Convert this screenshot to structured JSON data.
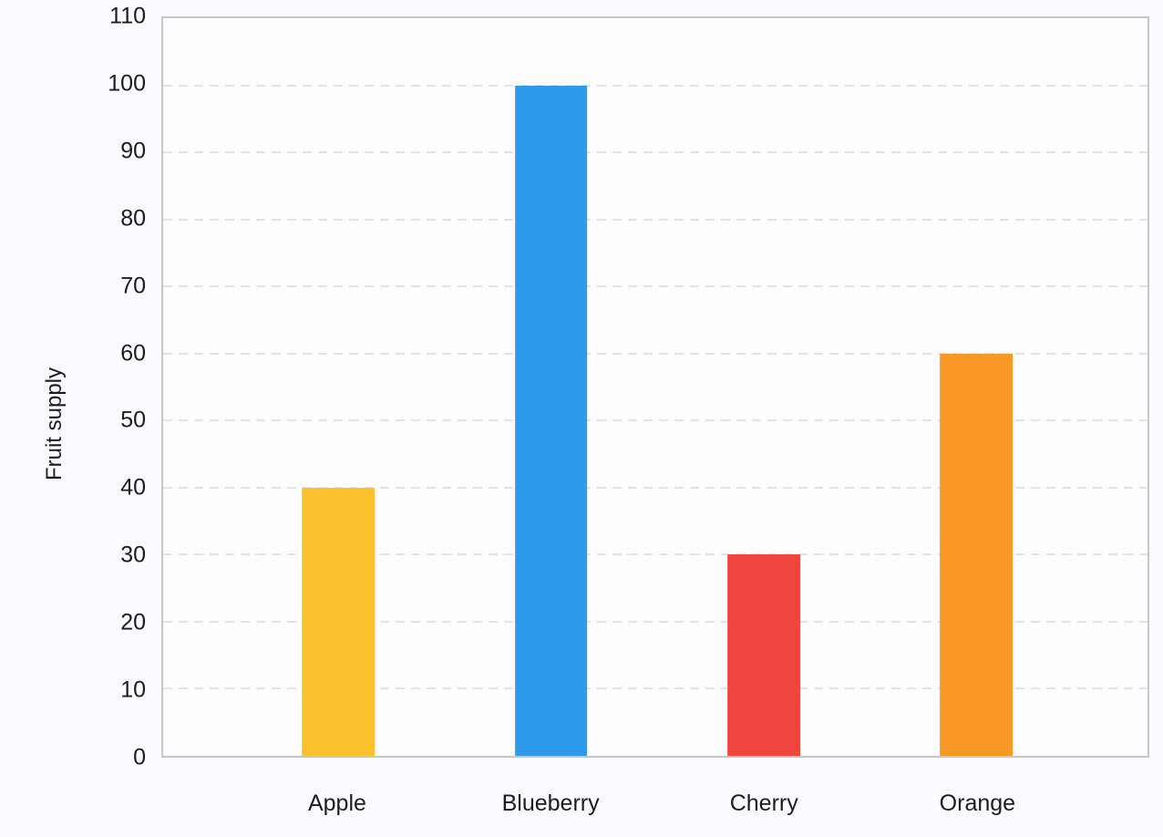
{
  "chart_data": {
    "type": "bar",
    "categories": [
      "Apple",
      "Blueberry",
      "Cherry",
      "Orange"
    ],
    "values": [
      40,
      100,
      30,
      60
    ],
    "bar_colors": [
      "#fcc22d",
      "#2e9aec",
      "#f0453e",
      "#fa9827"
    ],
    "title": "",
    "xlabel": "",
    "ylabel": "Fruit supply",
    "ylim": [
      0,
      110
    ],
    "yticks": [
      0,
      10,
      20,
      30,
      40,
      50,
      60,
      70,
      80,
      90,
      100,
      110
    ],
    "grid": "dashed-horizontal",
    "legend": "none"
  },
  "colors": {
    "page_background": "#fafaff",
    "plot_background": "#fdfdff",
    "axis_border": "#c6c6ca",
    "gridline": "#e3e3e7",
    "text": "#1c1c1e"
  }
}
